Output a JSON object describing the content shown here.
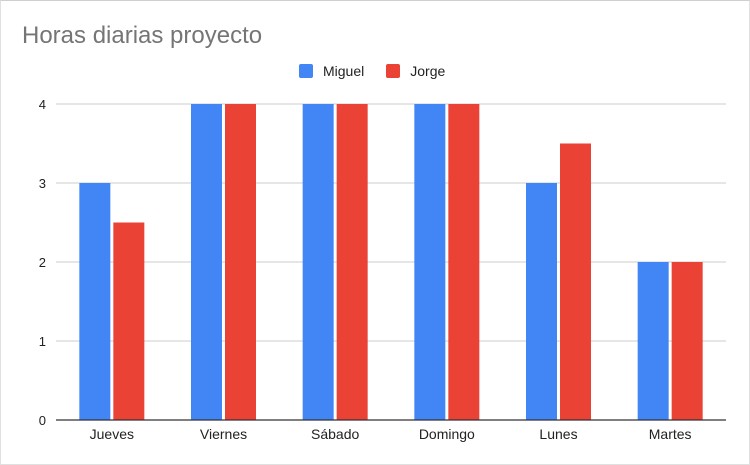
{
  "chart_data": {
    "type": "bar",
    "title": "Horas diarias proyecto",
    "categories": [
      "Jueves",
      "Viernes",
      "Sábado",
      "Domingo",
      "Lunes",
      "Martes"
    ],
    "series": [
      {
        "name": "Miguel",
        "color": "#4285f4",
        "values": [
          3,
          4,
          4,
          4,
          3,
          2
        ]
      },
      {
        "name": "Jorge",
        "color": "#ea4335",
        "values": [
          2.5,
          4,
          4,
          4,
          3.5,
          2
        ]
      }
    ],
    "yticks": [
      "0",
      "1",
      "2",
      "3",
      "4"
    ],
    "ylim": [
      0,
      4
    ],
    "xlabel": "",
    "ylabel": "",
    "legend_position": "top"
  }
}
